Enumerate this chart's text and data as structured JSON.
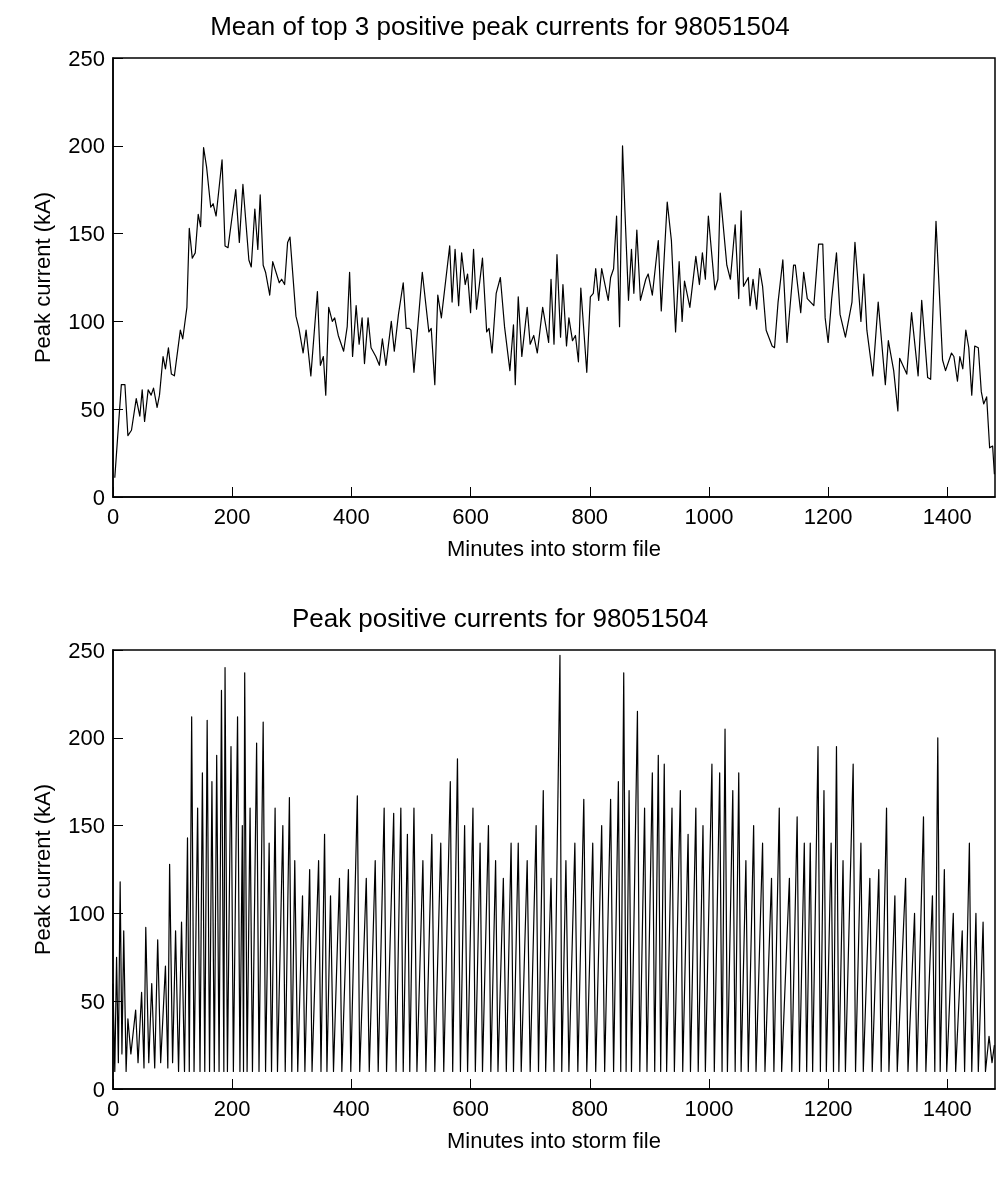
{
  "chart_data": [
    {
      "type": "line",
      "title": "Mean of top 3 positive peak currents for 98051504",
      "xlabel": "Minutes into storm file",
      "ylabel": "Peak current (kA)",
      "xlim": [
        0,
        1480
      ],
      "xticks": [
        0,
        200,
        400,
        600,
        800,
        1000,
        1200,
        1400
      ],
      "ylim": [
        0,
        250
      ],
      "yticks": [
        0,
        50,
        100,
        150,
        200,
        250
      ],
      "grid": false,
      "marker": "none",
      "line_style": "solid",
      "series": [
        {
          "color": "#000000",
          "x": [
            3,
            14,
            20,
            25,
            31,
            39,
            45,
            49,
            53,
            59,
            64,
            68,
            74,
            78,
            84,
            88,
            93,
            98,
            103,
            113,
            117,
            124,
            128,
            133,
            138,
            143,
            147,
            152,
            157,
            164,
            168,
            173,
            183,
            188,
            193,
            200,
            206,
            212,
            218,
            228,
            232,
            238,
            243,
            247,
            252,
            256,
            263,
            268,
            279,
            283,
            288,
            293,
            297,
            307,
            312,
            319,
            324,
            332,
            343,
            348,
            353,
            357,
            362,
            368,
            372,
            378,
            387,
            393,
            397,
            402,
            408,
            413,
            418,
            422,
            428,
            433,
            441,
            447,
            452,
            458,
            467,
            472,
            479,
            487,
            492,
            497,
            500,
            505,
            519,
            530,
            534,
            540,
            545,
            551,
            565,
            569,
            574,
            580,
            585,
            591,
            595,
            600,
            605,
            610,
            620,
            627,
            631,
            636,
            643,
            650,
            657,
            666,
            672,
            675,
            680,
            686,
            695,
            700,
            706,
            712,
            721,
            731,
            735,
            740,
            745,
            751,
            755,
            761,
            765,
            771,
            776,
            781,
            785,
            795,
            801,
            806,
            810,
            815,
            820,
            831,
            835,
            840,
            845,
            850,
            855,
            859,
            865,
            870,
            874,
            879,
            885,
            894,
            898,
            905,
            915,
            920,
            930,
            937,
            944,
            950,
            955,
            959,
            968,
            978,
            984,
            989,
            994,
            999,
            1010,
            1015,
            1019,
            1030,
            1036,
            1044,
            1050,
            1054,
            1058,
            1066,
            1069,
            1074,
            1080,
            1085,
            1090,
            1096,
            1106,
            1110,
            1116,
            1124,
            1131,
            1142,
            1145,
            1154,
            1159,
            1165,
            1176,
            1184,
            1191,
            1195,
            1200,
            1206,
            1214,
            1220,
            1229,
            1240,
            1245,
            1255,
            1260,
            1265,
            1275,
            1284,
            1296,
            1301,
            1310,
            1317,
            1320,
            1332,
            1340,
            1351,
            1357,
            1367,
            1372,
            1381,
            1392,
            1397,
            1407,
            1411,
            1417,
            1421,
            1426,
            1431,
            1436,
            1441,
            1446,
            1452,
            1457,
            1461,
            1466,
            1471,
            1476,
            1479
          ],
          "values": [
            11,
            64,
            64,
            35,
            38,
            56,
            46,
            61,
            43,
            61,
            58,
            62,
            51,
            58,
            80,
            73,
            85,
            70,
            69,
            95,
            90,
            108,
            153,
            136,
            139,
            161,
            154,
            199,
            188,
            165,
            167,
            160,
            192,
            143,
            142,
            160,
            175,
            145,
            178,
            135,
            131,
            164,
            141,
            172,
            132,
            128,
            115,
            134,
            122,
            124,
            121,
            145,
            148,
            103,
            96,
            82,
            95,
            69,
            117,
            75,
            80,
            58,
            108,
            100,
            102,
            92,
            83,
            97,
            128,
            80,
            109,
            87,
            102,
            76,
            102,
            85,
            80,
            75,
            90,
            75,
            100,
            83,
            104,
            122,
            96,
            96,
            95,
            71,
            128,
            94,
            96,
            64,
            115,
            102,
            143,
            111,
            141,
            109,
            139,
            121,
            127,
            105,
            141,
            107,
            136,
            94,
            96,
            82,
            116,
            125,
            97,
            72,
            98,
            64,
            114,
            80,
            108,
            87,
            92,
            82,
            108,
            88,
            124,
            87,
            138,
            91,
            121,
            86,
            102,
            89,
            92,
            77,
            119,
            71,
            114,
            116,
            130,
            112,
            130,
            112,
            125,
            130,
            160,
            97,
            200,
            163,
            112,
            141,
            116,
            152,
            112,
            124,
            127,
            115,
            146,
            106,
            168,
            146,
            94,
            134,
            100,
            123,
            108,
            137,
            121,
            139,
            124,
            160,
            118,
            124,
            173,
            132,
            124,
            155,
            113,
            163,
            120,
            125,
            109,
            124,
            107,
            130,
            120,
            95,
            86,
            85,
            111,
            135,
            88,
            132,
            132,
            105,
            128,
            113,
            109,
            144,
            144,
            102,
            88,
            113,
            139,
            104,
            91,
            111,
            145,
            100,
            127,
            95,
            69,
            111,
            64,
            89,
            72,
            49,
            79,
            70,
            105,
            69,
            112,
            68,
            67,
            157,
            78,
            72,
            82,
            80,
            66,
            80,
            73,
            95,
            85,
            58,
            86,
            85,
            60,
            53,
            57,
            28,
            29,
            13
          ]
        }
      ]
    },
    {
      "type": "line",
      "title": "Peak positive currents for 98051504",
      "xlabel": "Minutes into storm file",
      "ylabel": "Peak current (kA)",
      "xlim": [
        0,
        1480
      ],
      "xticks": [
        0,
        200,
        400,
        600,
        800,
        1000,
        1200,
        1400
      ],
      "ylim": [
        0,
        250
      ],
      "yticks": [
        0,
        50,
        100,
        150,
        200,
        250
      ],
      "grid": false,
      "marker": "none",
      "line_style": "solid",
      "series": [
        {
          "color": "#000000",
          "x": [
            0,
            3,
            6,
            9,
            12,
            15,
            18,
            22,
            25,
            30,
            38,
            42,
            48,
            52,
            55,
            60,
            65,
            70,
            75,
            80,
            88,
            92,
            95,
            100,
            105,
            110,
            115,
            120,
            125,
            128,
            132,
            136,
            142,
            146,
            150,
            154,
            158,
            162,
            166,
            170,
            174,
            178,
            182,
            186,
            188,
            192,
            198,
            202,
            209,
            213,
            217,
            219,
            221,
            225,
            230,
            234,
            241,
            245,
            252,
            256,
            262,
            266,
            272,
            276,
            285,
            289,
            296,
            300,
            305,
            310,
            318,
            322,
            330,
            334,
            345,
            349,
            355,
            359,
            365,
            370,
            380,
            384,
            395,
            399,
            410,
            414,
            425,
            430,
            440,
            445,
            455,
            459,
            471,
            475,
            483,
            487,
            494,
            498,
            505,
            510,
            520,
            525,
            535,
            540,
            550,
            555,
            566,
            570,
            578,
            583,
            590,
            595,
            604,
            608,
            616,
            620,
            630,
            634,
            642,
            646,
            655,
            660,
            668,
            672,
            680,
            685,
            695,
            700,
            710,
            714,
            722,
            726,
            735,
            740,
            750,
            753,
            760,
            765,
            775,
            780,
            790,
            795,
            805,
            810,
            820,
            825,
            835,
            840,
            848,
            852,
            857,
            861,
            866,
            870,
            880,
            884,
            892,
            896,
            905,
            909,
            915,
            919,
            925,
            929,
            938,
            942,
            952,
            956,
            965,
            969,
            978,
            982,
            990,
            994,
            1005,
            1009,
            1018,
            1022,
            1027,
            1031,
            1040,
            1044,
            1050,
            1054,
            1062,
            1066,
            1075,
            1079,
            1090,
            1094,
            1105,
            1109,
            1118,
            1122,
            1135,
            1139,
            1148,
            1152,
            1160,
            1164,
            1170,
            1174,
            1183,
            1187,
            1193,
            1197,
            1205,
            1209,
            1214,
            1218,
            1225,
            1229,
            1242,
            1246,
            1255,
            1259,
            1270,
            1274,
            1285,
            1289,
            1298,
            1302,
            1312,
            1316,
            1330,
            1334,
            1345,
            1349,
            1360,
            1364,
            1375,
            1379,
            1384,
            1388,
            1395,
            1399,
            1410,
            1414,
            1425,
            1429,
            1437,
            1441,
            1448,
            1452,
            1460,
            1464,
            1470,
            1475,
            1479
          ],
          "values": [
            60,
            10,
            75,
            15,
            118,
            20,
            90,
            10,
            40,
            20,
            45,
            15,
            55,
            12,
            92,
            15,
            60,
            12,
            85,
            15,
            70,
            12,
            128,
            15,
            90,
            10,
            95,
            10,
            143,
            10,
            212,
            10,
            160,
            10,
            180,
            10,
            210,
            10,
            175,
            10,
            190,
            10,
            227,
            10,
            240,
            10,
            195,
            10,
            212,
            10,
            150,
            10,
            237,
            10,
            160,
            10,
            197,
            10,
            209,
            10,
            140,
            10,
            160,
            10,
            150,
            10,
            166,
            10,
            130,
            10,
            110,
            10,
            125,
            10,
            130,
            10,
            145,
            10,
            110,
            10,
            120,
            10,
            125,
            10,
            167,
            10,
            120,
            10,
            130,
            10,
            160,
            10,
            157,
            10,
            160,
            10,
            145,
            10,
            160,
            10,
            130,
            10,
            145,
            10,
            140,
            10,
            175,
            10,
            188,
            10,
            150,
            10,
            160,
            10,
            140,
            10,
            150,
            10,
            130,
            10,
            120,
            10,
            140,
            10,
            140,
            10,
            130,
            10,
            150,
            10,
            170,
            10,
            120,
            10,
            247,
            10,
            130,
            10,
            140,
            10,
            165,
            10,
            140,
            10,
            150,
            10,
            165,
            10,
            175,
            10,
            237,
            10,
            170,
            10,
            215,
            10,
            160,
            10,
            180,
            10,
            190,
            10,
            185,
            10,
            160,
            10,
            170,
            10,
            145,
            10,
            160,
            10,
            150,
            10,
            185,
            10,
            180,
            10,
            205,
            10,
            170,
            10,
            180,
            10,
            130,
            10,
            150,
            10,
            140,
            10,
            120,
            10,
            160,
            10,
            120,
            10,
            155,
            10,
            140,
            10,
            140,
            10,
            195,
            10,
            170,
            10,
            140,
            10,
            195,
            10,
            130,
            10,
            185,
            10,
            140,
            10,
            120,
            10,
            125,
            10,
            160,
            10,
            110,
            10,
            120,
            10,
            100,
            10,
            155,
            10,
            110,
            10,
            200,
            10,
            125,
            10,
            100,
            10,
            90,
            10,
            140,
            10,
            100,
            10,
            95,
            10,
            30,
            15,
            25
          ]
        }
      ]
    }
  ]
}
